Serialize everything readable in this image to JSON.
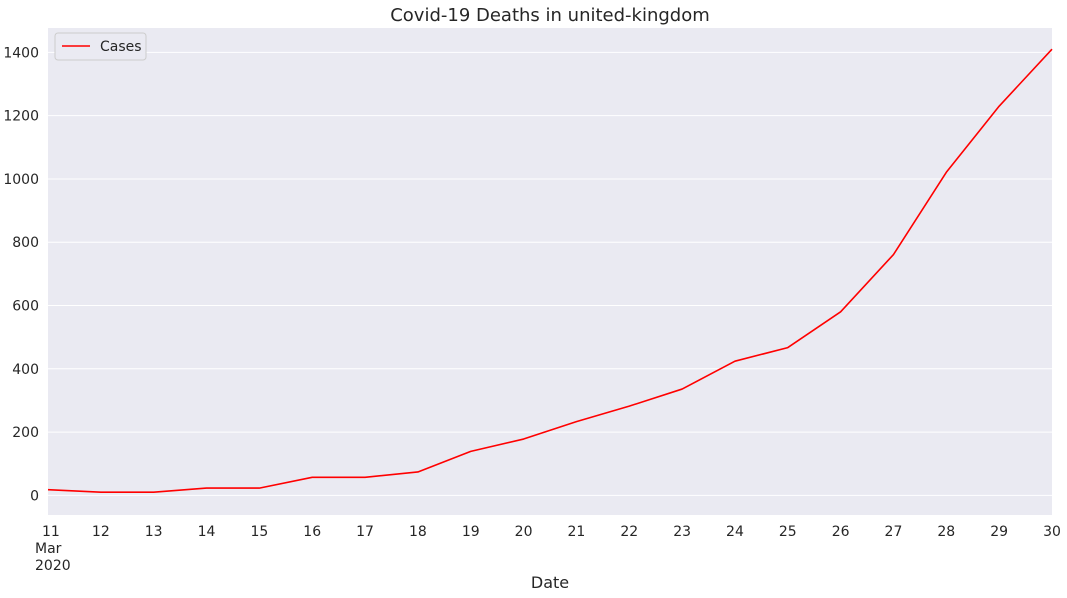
{
  "chart_data": {
    "type": "line",
    "title": "Covid-19 Deaths in united-kingdom",
    "xlabel": "Date",
    "ylabel": "",
    "x": [
      "2020-03-11",
      "2020-03-12",
      "2020-03-13",
      "2020-03-14",
      "2020-03-15",
      "2020-03-16",
      "2020-03-17",
      "2020-03-18",
      "2020-03-19",
      "2020-03-20",
      "2020-03-21",
      "2020-03-22",
      "2020-03-23",
      "2020-03-24",
      "2020-03-25",
      "2020-03-26",
      "2020-03-27",
      "2020-03-28",
      "2020-03-29",
      "2020-03-30"
    ],
    "x_tick_labels": [
      "11",
      "12",
      "13",
      "14",
      "15",
      "16",
      "17",
      "18",
      "19",
      "20",
      "21",
      "22",
      "23",
      "24",
      "25",
      "26",
      "27",
      "28",
      "29",
      "30"
    ],
    "x_first_tick_extra": [
      "Mar",
      "2020"
    ],
    "series": [
      {
        "name": "Cases",
        "color": "#ff0000",
        "values": [
          18,
          10,
          10,
          23,
          23,
          57,
          57,
          74,
          139,
          178,
          233,
          282,
          336,
          424,
          467,
          580,
          761,
          1021,
          1230,
          1410
        ]
      }
    ],
    "ylim": [
      -62,
      1477
    ],
    "yticks": [
      0,
      200,
      400,
      600,
      800,
      1000,
      1200,
      1400
    ],
    "grid": true,
    "legend_position": "top-left",
    "background_color": "#eaeaf2",
    "grid_color": "#ffffff"
  }
}
